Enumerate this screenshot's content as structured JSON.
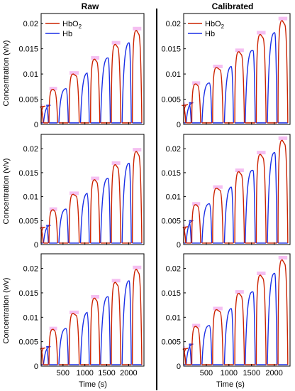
{
  "column_titles": [
    "Raw",
    "Calibrated"
  ],
  "ylabel": "Concentration (v/v)",
  "xlabel": "Time (s)",
  "legend": [
    "HbO2",
    "Hb"
  ],
  "colors": {
    "HbO2": "#cc2200",
    "Hb": "#1a2ee6",
    "highlight": "#f4b8f0",
    "trace": "#5a6a1a"
  },
  "chart_data": [
    {
      "type": "line",
      "column": "Raw",
      "row": 1,
      "xlim": [
        0,
        2350
      ],
      "ylim": [
        0,
        0.022
      ],
      "yticks": [
        0,
        0.005,
        0.01,
        0.015,
        0.02
      ],
      "ytick_labels": [
        "0",
        "0.005",
        "0.01",
        "0.015",
        "0.02"
      ],
      "xticks": [
        500,
        1000,
        1500,
        2000
      ],
      "xtick_labels": [
        "500",
        "1000",
        "1500",
        "2000"
      ],
      "legend": [
        "HbO2",
        "Hb"
      ],
      "series": [
        {
          "name": "HbO2",
          "plateaus": [
            0.0037,
            0.0038,
            0.0071,
            0.0102,
            0.0132,
            0.0162,
            0.019
          ]
        },
        {
          "name": "Hb",
          "plateaus": [
            0.0037,
            0.0038,
            0.0071,
            0.0102,
            0.0132,
            0.0162,
            0.0188
          ]
        }
      ]
    },
    {
      "type": "line",
      "column": "Calibrated",
      "row": 1,
      "xlim": [
        0,
        2350
      ],
      "ylim": [
        0,
        0.022
      ],
      "yticks": [
        0,
        0.005,
        0.01,
        0.015,
        0.02
      ],
      "ytick_labels": [
        "0",
        "0.005",
        "0.01",
        "0.015",
        "0.02"
      ],
      "xticks": [
        500,
        1000,
        1500,
        2000
      ],
      "xtick_labels": [
        "500",
        "1000",
        "1500",
        "2000"
      ],
      "legend": [
        "HbO2",
        "Hb"
      ],
      "series": [
        {
          "name": "HbO2",
          "plateaus": [
            0.004,
            0.0043,
            0.0082,
            0.0115,
            0.0147,
            0.0182,
            0.021
          ]
        },
        {
          "name": "Hb",
          "plateaus": [
            0.004,
            0.0043,
            0.0082,
            0.0115,
            0.0147,
            0.0182,
            0.021
          ]
        }
      ]
    },
    {
      "type": "line",
      "column": "Raw",
      "row": 2,
      "xlim": [
        0,
        2350
      ],
      "ylim": [
        0,
        0.023
      ],
      "yticks": [
        0,
        0.005,
        0.01,
        0.015,
        0.02
      ],
      "ytick_labels": [
        "0",
        "0.005",
        "0.01",
        "0.015",
        "0.02"
      ],
      "xticks": [
        500,
        1000,
        1500,
        2000
      ],
      "xtick_labels": [
        "500",
        "1000",
        "1500",
        "2000"
      ],
      "series": [
        {
          "name": "HbO2",
          "plateaus": [
            0.0037,
            0.004,
            0.0074,
            0.0107,
            0.0138,
            0.017,
            0.0198
          ]
        },
        {
          "name": "Hb",
          "plateaus": [
            0.0037,
            0.004,
            0.0074,
            0.0107,
            0.0138,
            0.017,
            0.022
          ]
        }
      ]
    },
    {
      "type": "line",
      "column": "Calibrated",
      "row": 2,
      "xlim": [
        0,
        2350
      ],
      "ylim": [
        0,
        0.023
      ],
      "yticks": [
        0,
        0.005,
        0.01,
        0.015,
        0.02
      ],
      "ytick_labels": [
        "0",
        "0.005",
        "0.01",
        "0.015",
        "0.02"
      ],
      "xticks": [
        500,
        1000,
        1500,
        2000
      ],
      "xtick_labels": [
        "500",
        "1000",
        "1500",
        "2000"
      ],
      "series": [
        {
          "name": "HbO2",
          "plateaus": [
            0.0038,
            0.005,
            0.0085,
            0.012,
            0.0155,
            0.0192,
            0.0222
          ]
        },
        {
          "name": "Hb",
          "plateaus": [
            0.0038,
            0.005,
            0.0085,
            0.012,
            0.0155,
            0.0192,
            0.0228
          ]
        }
      ]
    },
    {
      "type": "line",
      "column": "Raw",
      "row": 3,
      "xlim": [
        0,
        2350
      ],
      "ylim": [
        0,
        0.023
      ],
      "yticks": [
        0,
        0.005,
        0.01,
        0.015,
        0.02
      ],
      "ytick_labels": [
        "0",
        "0.005",
        "0.01",
        "0.015",
        "0.02"
      ],
      "xticks": [
        500,
        1000,
        1500,
        2000
      ],
      "xtick_labels": [
        "500",
        "1000",
        "1500",
        "2000"
      ],
      "series": [
        {
          "name": "HbO2",
          "plateaus": [
            0.0038,
            0.004,
            0.0077,
            0.011,
            0.0142,
            0.0175,
            0.0202
          ]
        },
        {
          "name": "Hb",
          "plateaus": [
            0.0038,
            0.004,
            0.0077,
            0.011,
            0.0142,
            0.0175,
            0.022
          ]
        }
      ]
    },
    {
      "type": "line",
      "column": "Calibrated",
      "row": 3,
      "xlim": [
        0,
        2350
      ],
      "ylim": [
        0,
        0.023
      ],
      "yticks": [
        0,
        0.005,
        0.01,
        0.015,
        0.02
      ],
      "ytick_labels": [
        "0",
        "0.005",
        "0.01",
        "0.015",
        "0.02"
      ],
      "xticks": [
        500,
        1000,
        1500,
        2000
      ],
      "xtick_labels": [
        "500",
        "1000",
        "1500",
        "2000"
      ],
      "series": [
        {
          "name": "HbO2",
          "plateaus": [
            0.0037,
            0.0045,
            0.0083,
            0.0118,
            0.0152,
            0.019,
            0.0222
          ]
        },
        {
          "name": "Hb",
          "plateaus": [
            0.0037,
            0.0045,
            0.0083,
            0.0118,
            0.0152,
            0.019,
            0.0228
          ]
        }
      ]
    }
  ]
}
